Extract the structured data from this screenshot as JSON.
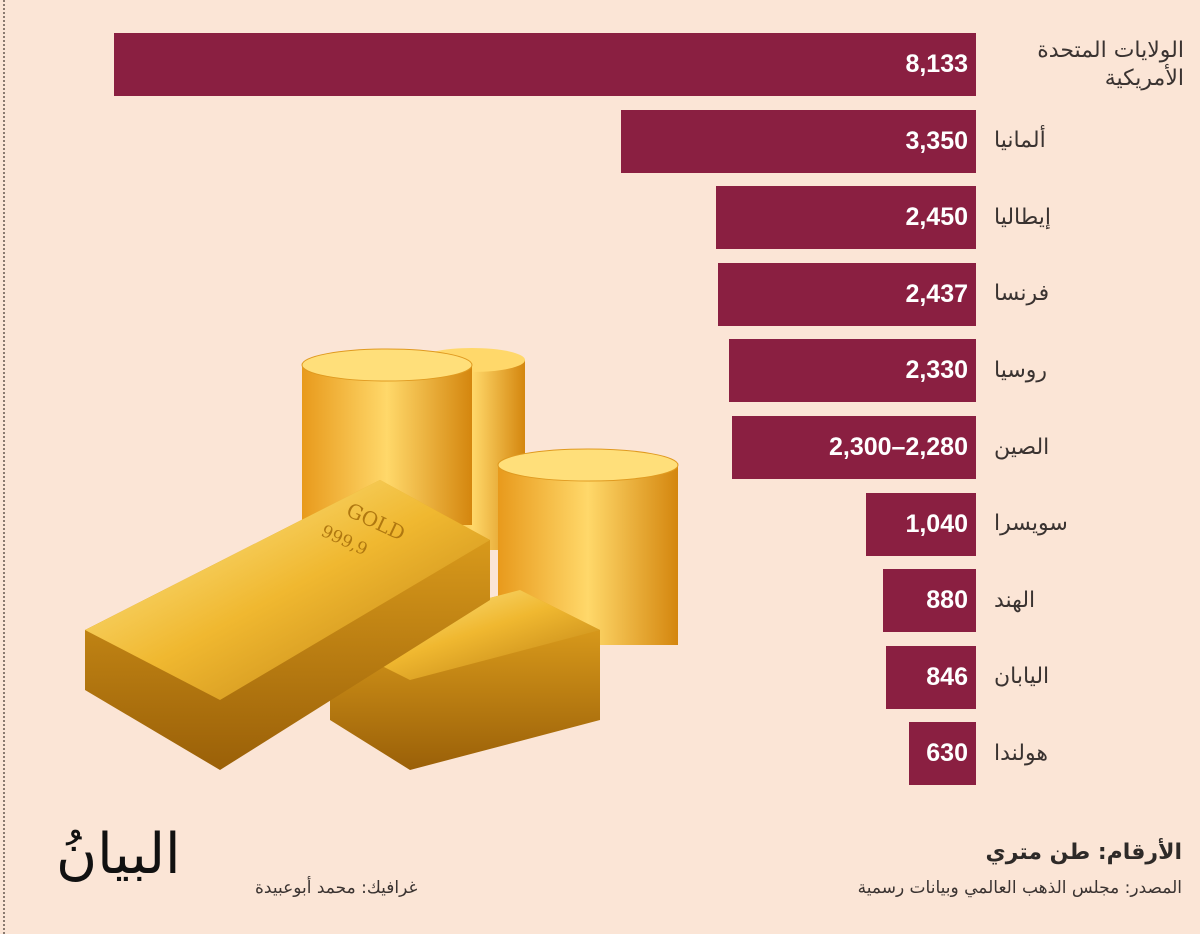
{
  "chart_data": {
    "type": "bar",
    "orientation": "horizontal",
    "categories": [
      "الولايات المتحدة الأمريكية",
      "ألمانيا",
      "إيطاليا",
      "فرنسا",
      "روسيا",
      "الصين",
      "سويسرا",
      "الهند",
      "اليابان",
      "هولندا"
    ],
    "values": [
      8133,
      3350,
      2450,
      2437,
      2330,
      2300,
      1040,
      880,
      846,
      630
    ],
    "value_labels": [
      "8,133",
      "3,350",
      "2,450",
      "2,437",
      "2,330",
      "2,300–2,280",
      "1,040",
      "880",
      "846",
      "630"
    ],
    "bar_color": "#8a1f41",
    "unit_note": "الأرقام: طن متري",
    "source": "المصدر: مجلس الذهب العالمي وبيانات رسمية"
  },
  "footer": {
    "credit": "غرافيك: محمد أبوعبيدة",
    "logo": "البيانُ"
  },
  "illustration": {
    "gold_bar_text": "GOLD",
    "gold_bar_purity": "999,9"
  },
  "background": "#fbe5d6"
}
